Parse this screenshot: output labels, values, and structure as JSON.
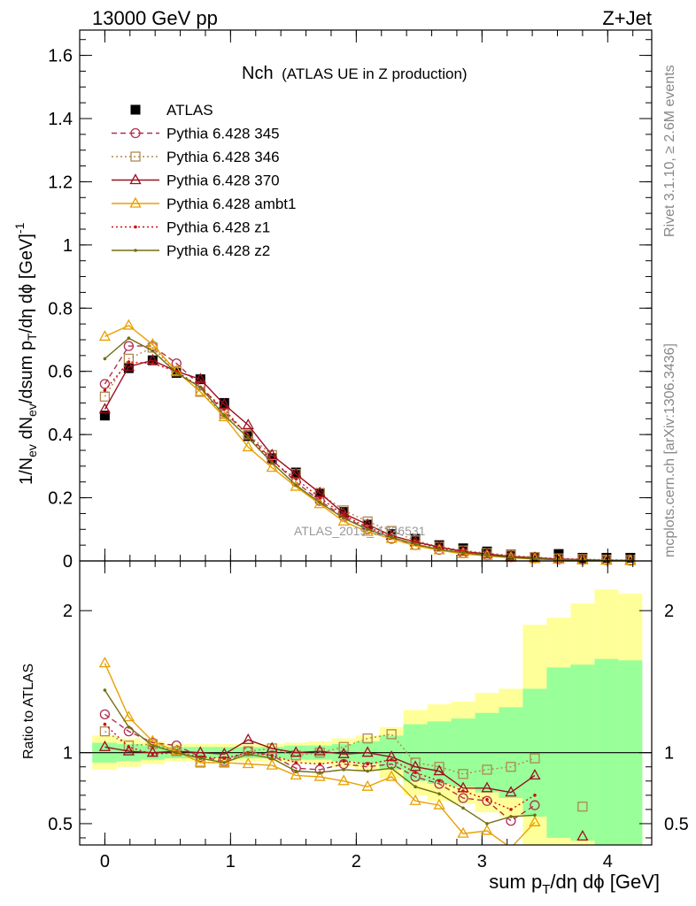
{
  "header": {
    "left": "13000 GeV pp",
    "right": "Z+Jet"
  },
  "side_labels": {
    "rivet": "Rivet 3.1.10, ≥ 2.6M events",
    "mcplots": "mcplots.cern.ch [arXiv:1306.3436]"
  },
  "watermark": "ATLAS_2019_I1736531",
  "colors": {
    "ATLAS": "#000000",
    "p345": "#b03050",
    "p346": "#b08850",
    "p370": "#9b1020",
    "ambt1": "#e8a000",
    "z1": "#cc1010",
    "z2": "#707010",
    "band_green": "#99ff99",
    "band_yellow": "#ffff99"
  },
  "chart_data": [
    {
      "type": "line",
      "title_main": "Nch",
      "title_sub": "(ATLAS UE in Z production)",
      "ylabel": "1/N_ev dN_ev/dsum p_T/dη dφ [GeV]^-1",
      "xlim": [
        -0.2,
        4.35
      ],
      "ylim": [
        0,
        1.68
      ],
      "yticks": [
        0,
        0.2,
        0.4,
        0.6,
        0.8,
        1,
        1.2,
        1.4,
        1.6
      ],
      "ytick_labels": [
        "0",
        "0.2",
        "0.4",
        "0.6",
        "0.8",
        "1",
        "1.2",
        "1.4",
        "1.6"
      ],
      "x": [
        0,
        0.19,
        0.38,
        0.57,
        0.76,
        0.95,
        1.14,
        1.33,
        1.52,
        1.71,
        1.9,
        2.09,
        2.28,
        2.47,
        2.66,
        2.85,
        3.04,
        3.23,
        3.42,
        3.61,
        3.8,
        3.99,
        4.18
      ],
      "legend": [
        "ATLAS",
        "Pythia 6.428 345",
        "Pythia 6.428 346",
        "Pythia 6.428 370",
        "Pythia 6.428 ambt1",
        "Pythia 6.428 z1",
        "Pythia 6.428 z2"
      ],
      "series": [
        {
          "name": "ATLAS",
          "values": [
            0.46,
            0.61,
            0.635,
            0.595,
            0.575,
            0.5,
            0.395,
            0.325,
            0.28,
            0.215,
            0.155,
            0.115,
            0.085,
            0.07,
            0.05,
            0.04,
            0.03,
            0.02,
            0.012,
            0.022,
            0.01,
            0.01,
            0.01
          ]
        },
        {
          "name": "Pythia 6.428 345",
          "values": [
            0.56,
            0.68,
            0.68,
            0.625,
            0.555,
            0.47,
            0.4,
            0.32,
            0.25,
            0.19,
            0.14,
            0.1,
            0.07,
            0.05,
            0.035,
            0.025,
            0.018,
            0.012,
            0.008,
            0.005,
            0.003,
            0.002,
            0.001
          ]
        },
        {
          "name": "Pythia 6.428 346",
          "values": [
            0.52,
            0.64,
            0.675,
            0.6,
            0.535,
            0.465,
            0.4,
            0.335,
            0.275,
            0.215,
            0.16,
            0.125,
            0.095,
            0.065,
            0.045,
            0.033,
            0.025,
            0.018,
            0.012,
            0.008,
            0.006,
            0.004,
            0.003
          ]
        },
        {
          "name": "Pythia 6.428 370",
          "values": [
            0.48,
            0.615,
            0.635,
            0.6,
            0.575,
            0.495,
            0.43,
            0.335,
            0.275,
            0.215,
            0.15,
            0.115,
            0.08,
            0.06,
            0.044,
            0.03,
            0.022,
            0.014,
            0.01,
            0.006,
            0.004,
            0.002,
            0.001
          ]
        },
        {
          "name": "Pythia 6.428 ambt1",
          "values": [
            0.71,
            0.745,
            0.685,
            0.6,
            0.535,
            0.455,
            0.36,
            0.295,
            0.235,
            0.18,
            0.125,
            0.092,
            0.07,
            0.048,
            0.034,
            0.022,
            0.016,
            0.01,
            0.006,
            0.004,
            0.002,
            0.001,
            0.001
          ]
        },
        {
          "name": "Pythia 6.428 z1",
          "values": [
            0.54,
            0.63,
            0.625,
            0.6,
            0.55,
            0.48,
            0.395,
            0.315,
            0.26,
            0.2,
            0.145,
            0.105,
            0.08,
            0.06,
            0.04,
            0.03,
            0.02,
            0.012,
            0.008,
            0.004,
            0.002,
            0.001,
            0.001
          ]
        },
        {
          "name": "Pythia 6.428 z2",
          "values": [
            0.64,
            0.705,
            0.665,
            0.595,
            0.55,
            0.46,
            0.39,
            0.31,
            0.24,
            0.185,
            0.135,
            0.1,
            0.075,
            0.053,
            0.036,
            0.026,
            0.018,
            0.011,
            0.007,
            0.004,
            0.002,
            0.001,
            0.001
          ]
        }
      ]
    },
    {
      "type": "line",
      "ylabel": "Ratio to ATLAS",
      "xlabel": "sum p_T/dη dφ [GeV]",
      "xlim": [
        -0.2,
        4.35
      ],
      "ylim": [
        0.35,
        2.35
      ],
      "yticks": [
        0.5,
        1,
        2
      ],
      "ytick_labels": [
        "0.5",
        "1",
        "2"
      ],
      "xticks": [
        0,
        1,
        2,
        3,
        4
      ],
      "xtick_labels": [
        "0",
        "1",
        "2",
        "3",
        "4"
      ],
      "x": [
        0,
        0.19,
        0.38,
        0.57,
        0.76,
        0.95,
        1.14,
        1.33,
        1.52,
        1.71,
        1.9,
        2.09,
        2.28,
        2.47,
        2.66,
        2.85,
        3.04,
        3.23,
        3.42,
        3.61,
        3.8,
        3.99,
        4.18
      ],
      "bins": [
        -0.1,
        0.095,
        0.285,
        0.475,
        0.665,
        0.855,
        1.045,
        1.235,
        1.425,
        1.615,
        1.805,
        1.995,
        2.185,
        2.375,
        2.565,
        2.755,
        2.945,
        3.135,
        3.325,
        3.515,
        3.705,
        3.895,
        4.085,
        4.275
      ],
      "band_green": [
        0.07,
        0.06,
        0.05,
        0.04,
        0.04,
        0.04,
        0.04,
        0.04,
        0.05,
        0.05,
        0.06,
        0.08,
        0.12,
        0.2,
        0.22,
        0.24,
        0.28,
        0.32,
        0.45,
        0.6,
        0.62,
        0.66,
        0.65
      ],
      "band_yellow": [
        0.12,
        0.1,
        0.08,
        0.06,
        0.06,
        0.06,
        0.06,
        0.06,
        0.07,
        0.08,
        0.1,
        0.12,
        0.18,
        0.3,
        0.34,
        0.36,
        0.42,
        0.45,
        0.9,
        0.95,
        1.05,
        1.15,
        1.12
      ],
      "series": [
        {
          "name": "Pythia 6.428 345",
          "values": [
            1.27,
            1.15,
            1.07,
            1.05,
            0.97,
            0.94,
            1.01,
            0.98,
            0.89,
            0.88,
            0.92,
            0.9,
            0.92,
            0.83,
            0.78,
            0.68,
            0.66,
            0.52,
            0.63,
            null,
            null,
            null,
            null
          ]
        },
        {
          "name": "Pythia 6.428 346",
          "values": [
            1.15,
            1.05,
            1.06,
            1.01,
            0.93,
            0.93,
            1.01,
            1.03,
            0.98,
            1.0,
            1.04,
            1.1,
            1.13,
            0.93,
            0.9,
            0.85,
            0.88,
            0.9,
            0.96,
            null,
            0.62,
            null,
            null
          ]
        },
        {
          "name": "Pythia 6.428 370",
          "values": [
            1.04,
            1.01,
            1.0,
            1.01,
            1.0,
            0.99,
            1.09,
            1.03,
            1.0,
            1.01,
            0.99,
            1.0,
            0.97,
            0.9,
            0.87,
            0.75,
            0.75,
            0.72,
            0.84,
            null,
            0.41,
            null,
            null
          ]
        },
        {
          "name": "Pythia 6.428 ambt1",
          "values": [
            1.63,
            1.25,
            1.08,
            1.01,
            0.93,
            0.93,
            0.92,
            0.91,
            0.84,
            0.83,
            0.8,
            0.76,
            0.83,
            0.66,
            0.63,
            0.43,
            0.45,
            0.33,
            0.51,
            null,
            null,
            null,
            null
          ]
        },
        {
          "name": "Pythia 6.428 z1",
          "values": [
            1.2,
            1.04,
            0.99,
            1.0,
            0.97,
            0.96,
            1.0,
            0.98,
            0.93,
            0.92,
            0.94,
            0.92,
            0.95,
            0.86,
            0.8,
            0.73,
            0.67,
            0.6,
            0.7,
            null,
            null,
            null,
            null
          ]
        },
        {
          "name": "Pythia 6.428 z2",
          "values": [
            1.44,
            1.18,
            1.05,
            1.0,
            0.96,
            0.93,
            0.99,
            0.96,
            0.87,
            0.86,
            0.88,
            0.87,
            0.89,
            0.76,
            0.71,
            0.61,
            0.5,
            0.55,
            0.56,
            null,
            null,
            null,
            null
          ]
        }
      ]
    }
  ]
}
